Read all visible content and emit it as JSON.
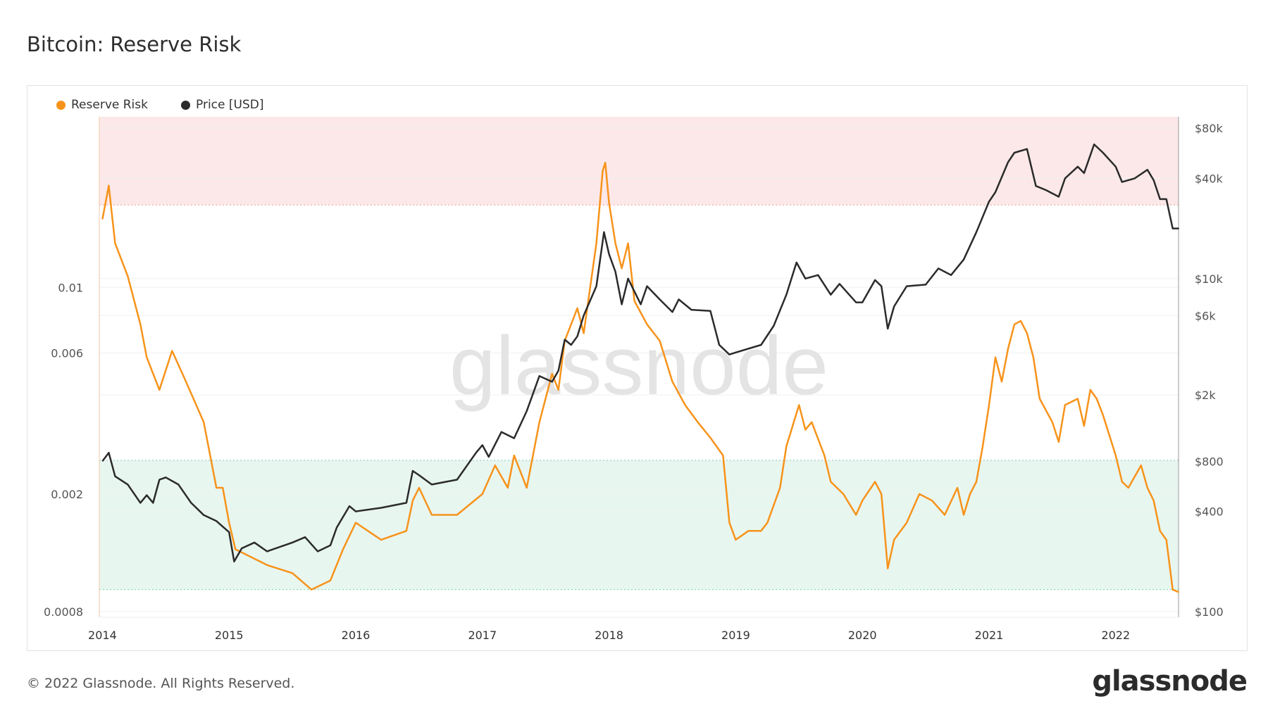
{
  "header": {
    "title": "Bitcoin: Reserve Risk"
  },
  "footer": {
    "copyright": "© 2022 Glassnode. All Rights Reserved.",
    "logo": "glassnode"
  },
  "watermark": "glassnode",
  "colors": {
    "reserve_risk": "#f7931a",
    "price": "#2b2b2b",
    "red_zone": "#fce8e8",
    "green_zone": "#e8f6f0"
  },
  "chart_data": {
    "type": "line",
    "title": "Bitcoin: Reserve Risk",
    "legend": [
      {
        "name": "Reserve Risk",
        "color": "#f7931a"
      },
      {
        "name": "Price [USD]",
        "color": "#2b2b2b"
      }
    ],
    "legend_placement": "top-left",
    "x_ticks": [
      "2014",
      "2015",
      "2016",
      "2017",
      "2018",
      "2019",
      "2020",
      "2021",
      "2022"
    ],
    "xlim": [
      2014.0,
      2022.5
    ],
    "y_left": {
      "scale": "log",
      "ylim": [
        0.00076,
        0.0377
      ],
      "ticks": [
        {
          "v": 0.0008,
          "label": "0.0008"
        },
        {
          "v": 0.002,
          "label": "0.002"
        },
        {
          "v": 0.006,
          "label": "0.006"
        },
        {
          "v": 0.01,
          "label": "0.01"
        }
      ]
    },
    "y_right": {
      "scale": "log",
      "ylim": [
        95,
        100000
      ],
      "ticks": [
        {
          "v": 100,
          "label": "$100"
        },
        {
          "v": 400,
          "label": "$400"
        },
        {
          "v": 800,
          "label": "$800"
        },
        {
          "v": 2000,
          "label": "$2k"
        },
        {
          "v": 6000,
          "label": "$6k"
        },
        {
          "v": 10000,
          "label": "$10k"
        },
        {
          "v": 40000,
          "label": "$40k"
        },
        {
          "v": 80000,
          "label": "$80k"
        }
      ]
    },
    "zones": {
      "red_above": 0.019,
      "green_range": [
        0.00095,
        0.0026
      ]
    },
    "series": [
      {
        "name": "Reserve Risk",
        "axis": "left",
        "points": [
          [
            2014.0,
            0.017
          ],
          [
            2014.05,
            0.0221
          ],
          [
            2014.1,
            0.0141
          ],
          [
            2014.2,
            0.0109
          ],
          [
            2014.3,
            0.0075
          ],
          [
            2014.35,
            0.0058
          ],
          [
            2014.45,
            0.0045
          ],
          [
            2014.55,
            0.0061
          ],
          [
            2014.65,
            0.0049
          ],
          [
            2014.8,
            0.0035
          ],
          [
            2014.9,
            0.0021
          ],
          [
            2014.95,
            0.0021
          ],
          [
            2015.0,
            0.0016
          ],
          [
            2015.05,
            0.0013
          ],
          [
            2015.3,
            0.00115
          ],
          [
            2015.5,
            0.00108
          ],
          [
            2015.65,
            0.00095
          ],
          [
            2015.8,
            0.00102
          ],
          [
            2015.9,
            0.0013
          ],
          [
            2016.0,
            0.0016
          ],
          [
            2016.2,
            0.0014
          ],
          [
            2016.4,
            0.0015
          ],
          [
            2016.45,
            0.0019
          ],
          [
            2016.5,
            0.0021
          ],
          [
            2016.6,
            0.0017
          ],
          [
            2016.8,
            0.0017
          ],
          [
            2017.0,
            0.002
          ],
          [
            2017.1,
            0.0025
          ],
          [
            2017.2,
            0.0021
          ],
          [
            2017.25,
            0.0027
          ],
          [
            2017.35,
            0.0021
          ],
          [
            2017.45,
            0.0035
          ],
          [
            2017.55,
            0.0051
          ],
          [
            2017.6,
            0.0045
          ],
          [
            2017.65,
            0.0066
          ],
          [
            2017.75,
            0.0085
          ],
          [
            2017.8,
            0.007
          ],
          [
            2017.9,
            0.0141
          ],
          [
            2017.95,
            0.0248
          ],
          [
            2017.97,
            0.0264
          ],
          [
            2018.0,
            0.0193
          ],
          [
            2018.05,
            0.0141
          ],
          [
            2018.1,
            0.0116
          ],
          [
            2018.15,
            0.0141
          ],
          [
            2018.2,
            0.009
          ],
          [
            2018.3,
            0.0075
          ],
          [
            2018.4,
            0.0066
          ],
          [
            2018.5,
            0.0048
          ],
          [
            2018.6,
            0.004
          ],
          [
            2018.7,
            0.0035
          ],
          [
            2018.8,
            0.0031
          ],
          [
            2018.9,
            0.0027
          ],
          [
            2018.95,
            0.0016
          ],
          [
            2019.0,
            0.0014
          ],
          [
            2019.1,
            0.0015
          ],
          [
            2019.2,
            0.0015
          ],
          [
            2019.25,
            0.0016
          ],
          [
            2019.35,
            0.0021
          ],
          [
            2019.4,
            0.0029
          ],
          [
            2019.5,
            0.004
          ],
          [
            2019.55,
            0.0033
          ],
          [
            2019.6,
            0.0035
          ],
          [
            2019.7,
            0.0027
          ],
          [
            2019.75,
            0.0022
          ],
          [
            2019.85,
            0.002
          ],
          [
            2019.95,
            0.0017
          ],
          [
            2020.0,
            0.0019
          ],
          [
            2020.1,
            0.0022
          ],
          [
            2020.15,
            0.002
          ],
          [
            2020.2,
            0.00112
          ],
          [
            2020.25,
            0.0014
          ],
          [
            2020.35,
            0.0016
          ],
          [
            2020.45,
            0.002
          ],
          [
            2020.55,
            0.0019
          ],
          [
            2020.65,
            0.0017
          ],
          [
            2020.75,
            0.0021
          ],
          [
            2020.8,
            0.0017
          ],
          [
            2020.85,
            0.002
          ],
          [
            2020.9,
            0.0022
          ],
          [
            2020.95,
            0.0029
          ],
          [
            2021.0,
            0.004
          ],
          [
            2021.05,
            0.0058
          ],
          [
            2021.1,
            0.0048
          ],
          [
            2021.15,
            0.0062
          ],
          [
            2021.2,
            0.0075
          ],
          [
            2021.25,
            0.0077
          ],
          [
            2021.3,
            0.007
          ],
          [
            2021.35,
            0.0058
          ],
          [
            2021.4,
            0.0042
          ],
          [
            2021.5,
            0.0035
          ],
          [
            2021.55,
            0.003
          ],
          [
            2021.6,
            0.004
          ],
          [
            2021.7,
            0.0042
          ],
          [
            2021.75,
            0.0034
          ],
          [
            2021.8,
            0.0045
          ],
          [
            2021.85,
            0.0042
          ],
          [
            2021.9,
            0.0037
          ],
          [
            2022.0,
            0.0027
          ],
          [
            2022.05,
            0.0022
          ],
          [
            2022.1,
            0.0021
          ],
          [
            2022.2,
            0.0025
          ],
          [
            2022.25,
            0.0021
          ],
          [
            2022.3,
            0.0019
          ],
          [
            2022.35,
            0.0015
          ],
          [
            2022.4,
            0.0014
          ],
          [
            2022.42,
            0.0012
          ],
          [
            2022.45,
            0.00095
          ],
          [
            2022.5,
            0.00093
          ]
        ]
      },
      {
        "name": "Price [USD]",
        "axis": "right",
        "points": [
          [
            2014.0,
            800
          ],
          [
            2014.05,
            900
          ],
          [
            2014.1,
            650
          ],
          [
            2014.2,
            580
          ],
          [
            2014.3,
            450
          ],
          [
            2014.35,
            500
          ],
          [
            2014.4,
            450
          ],
          [
            2014.45,
            620
          ],
          [
            2014.5,
            640
          ],
          [
            2014.6,
            580
          ],
          [
            2014.7,
            450
          ],
          [
            2014.8,
            380
          ],
          [
            2014.9,
            350
          ],
          [
            2015.0,
            300
          ],
          [
            2015.04,
            200
          ],
          [
            2015.1,
            240
          ],
          [
            2015.2,
            260
          ],
          [
            2015.3,
            230
          ],
          [
            2015.5,
            260
          ],
          [
            2015.6,
            280
          ],
          [
            2015.7,
            230
          ],
          [
            2015.8,
            250
          ],
          [
            2015.85,
            320
          ],
          [
            2015.95,
            430
          ],
          [
            2016.0,
            400
          ],
          [
            2016.2,
            420
          ],
          [
            2016.4,
            450
          ],
          [
            2016.45,
            700
          ],
          [
            2016.5,
            660
          ],
          [
            2016.6,
            580
          ],
          [
            2016.8,
            620
          ],
          [
            2016.95,
            900
          ],
          [
            2017.0,
            1000
          ],
          [
            2017.05,
            850
          ],
          [
            2017.15,
            1200
          ],
          [
            2017.25,
            1100
          ],
          [
            2017.35,
            1600
          ],
          [
            2017.45,
            2600
          ],
          [
            2017.55,
            2400
          ],
          [
            2017.6,
            2800
          ],
          [
            2017.65,
            4300
          ],
          [
            2017.7,
            4000
          ],
          [
            2017.75,
            4500
          ],
          [
            2017.8,
            6000
          ],
          [
            2017.9,
            9000
          ],
          [
            2017.96,
            19000
          ],
          [
            2018.0,
            14000
          ],
          [
            2018.05,
            11000
          ],
          [
            2018.1,
            7000
          ],
          [
            2018.15,
            10000
          ],
          [
            2018.25,
            7000
          ],
          [
            2018.3,
            9000
          ],
          [
            2018.4,
            7500
          ],
          [
            2018.5,
            6300
          ],
          [
            2018.55,
            7500
          ],
          [
            2018.65,
            6500
          ],
          [
            2018.8,
            6400
          ],
          [
            2018.87,
            4000
          ],
          [
            2018.95,
            3500
          ],
          [
            2019.0,
            3600
          ],
          [
            2019.2,
            4000
          ],
          [
            2019.3,
            5200
          ],
          [
            2019.4,
            8000
          ],
          [
            2019.48,
            12500
          ],
          [
            2019.55,
            10000
          ],
          [
            2019.65,
            10500
          ],
          [
            2019.75,
            8000
          ],
          [
            2019.82,
            9300
          ],
          [
            2019.95,
            7200
          ],
          [
            2020.0,
            7200
          ],
          [
            2020.1,
            9800
          ],
          [
            2020.15,
            9000
          ],
          [
            2020.2,
            5000
          ],
          [
            2020.25,
            6800
          ],
          [
            2020.35,
            9000
          ],
          [
            2020.5,
            9200
          ],
          [
            2020.6,
            11500
          ],
          [
            2020.7,
            10500
          ],
          [
            2020.8,
            13000
          ],
          [
            2020.9,
            19000
          ],
          [
            2021.0,
            29000
          ],
          [
            2021.05,
            33000
          ],
          [
            2021.15,
            50000
          ],
          [
            2021.2,
            57000
          ],
          [
            2021.3,
            60000
          ],
          [
            2021.37,
            36000
          ],
          [
            2021.45,
            34000
          ],
          [
            2021.55,
            31000
          ],
          [
            2021.6,
            40000
          ],
          [
            2021.7,
            47000
          ],
          [
            2021.75,
            43000
          ],
          [
            2021.83,
            64000
          ],
          [
            2021.9,
            57000
          ],
          [
            2022.0,
            47000
          ],
          [
            2022.05,
            38000
          ],
          [
            2022.15,
            40000
          ],
          [
            2022.25,
            45000
          ],
          [
            2022.3,
            39000
          ],
          [
            2022.35,
            30000
          ],
          [
            2022.4,
            30000
          ],
          [
            2022.45,
            20000
          ],
          [
            2022.5,
            20000
          ]
        ]
      }
    ]
  }
}
